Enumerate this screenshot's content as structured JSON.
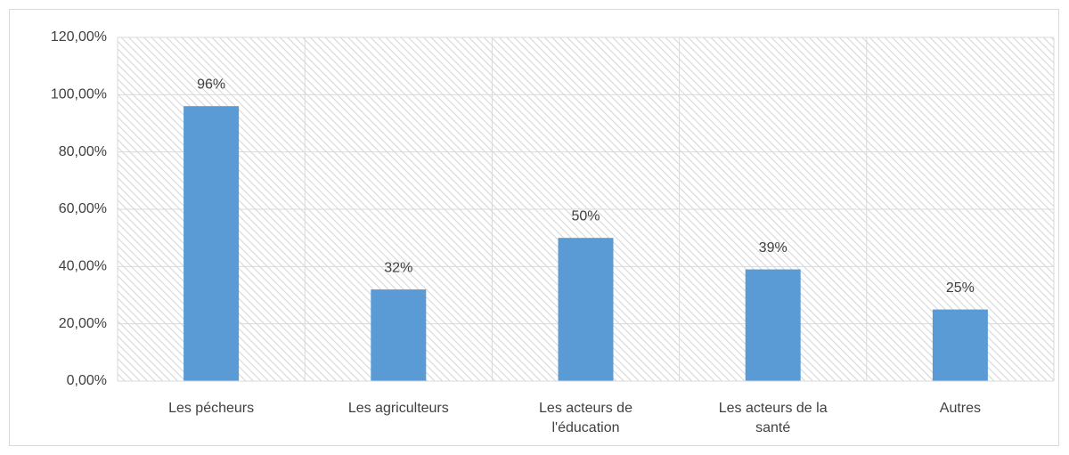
{
  "chart_data": {
    "type": "bar",
    "categories": [
      "Les pécheurs",
      "Les agriculteurs",
      "Les acteurs de l'éducation",
      "Les acteurs de la santé",
      "Autres"
    ],
    "values": [
      96,
      32,
      50,
      39,
      25
    ],
    "value_labels": [
      "96%",
      "32%",
      "50%",
      "39%",
      "25%"
    ],
    "color": "#5b9bd5",
    "ylim": [
      0,
      120
    ],
    "yticks": [
      {
        "value": 0,
        "label": "0,00%"
      },
      {
        "value": 20,
        "label": "20,00%"
      },
      {
        "value": 40,
        "label": "40,00%"
      },
      {
        "value": 60,
        "label": "60,00%"
      },
      {
        "value": 80,
        "label": "80,00%"
      },
      {
        "value": 100,
        "label": "100,00%"
      },
      {
        "value": 120,
        "label": "120,00%"
      }
    ],
    "grid": true
  }
}
